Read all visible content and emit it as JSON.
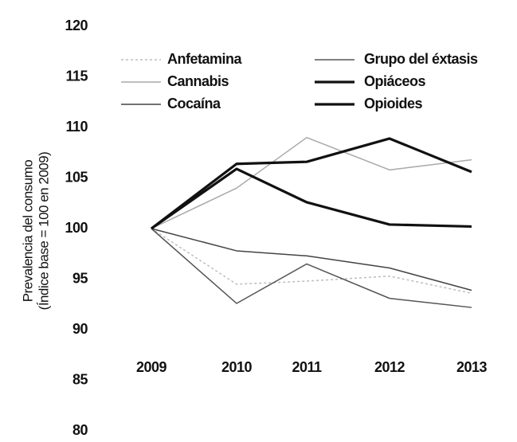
{
  "chart_data": {
    "type": "line",
    "y_label": [
      "Prevalencia del consumo",
      "(Índice base = 100 en 2009)"
    ],
    "categories": [
      "2009",
      "2010",
      "2011",
      "2012",
      "2013"
    ],
    "ylim": [
      80,
      120
    ],
    "yticks": [
      80,
      85,
      90,
      95,
      100,
      105,
      110,
      115,
      120
    ],
    "series": [
      {
        "name": "Anfetamina",
        "color": "#bdbdbd",
        "style": "dotted",
        "values": [
          100,
          94.5,
          94.8,
          95.3,
          93.6
        ]
      },
      {
        "name": "Cannabis",
        "color": "#a8a8a8",
        "style": "thin",
        "values": [
          100,
          104,
          109,
          105.8,
          106.8
        ]
      },
      {
        "name": "Cocaína",
        "color": "#444444",
        "style": "thin",
        "values": [
          100,
          97.8,
          97.3,
          96.1,
          93.9
        ]
      },
      {
        "name": "Grupo del éxtasis",
        "color": "#555555",
        "style": "thin",
        "values": [
          100,
          92.6,
          96.5,
          93.1,
          92.2
        ]
      },
      {
        "name": "Opiáceos",
        "color": "#111111",
        "style": "bold",
        "values": [
          100,
          105.9,
          102.6,
          100.4,
          100.2
        ]
      },
      {
        "name": "Opioides",
        "color": "#111111",
        "style": "bold",
        "values": [
          100,
          106.4,
          106.6,
          108.9,
          105.6
        ]
      }
    ]
  }
}
